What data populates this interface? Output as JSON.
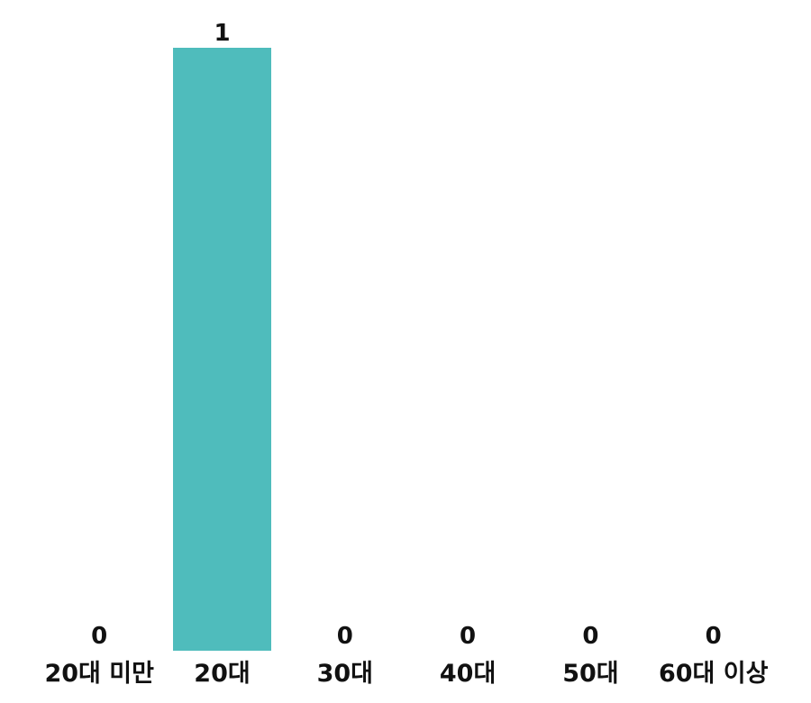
{
  "chart_data": {
    "type": "bar",
    "categories": [
      "20대 미만",
      "20대",
      "30대",
      "40대",
      "50대",
      "60대 이상"
    ],
    "values": [
      0,
      1,
      0,
      0,
      0,
      0
    ],
    "data_labels": [
      "0",
      "1",
      "0",
      "0",
      "0",
      "0"
    ],
    "title": "",
    "xlabel": "",
    "ylabel": "",
    "ylim": [
      0,
      1
    ],
    "grid": false,
    "legend": "none",
    "bar_color": "#4fbcbc"
  }
}
